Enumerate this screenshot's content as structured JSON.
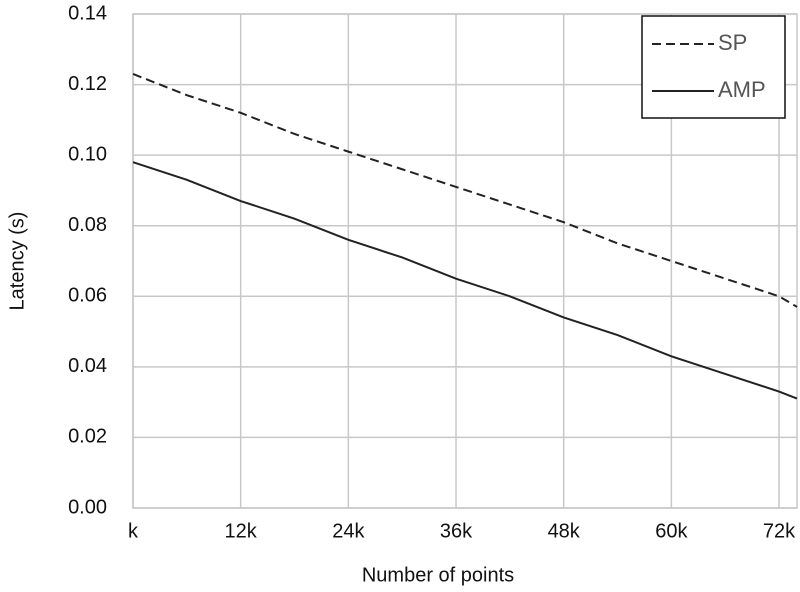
{
  "chart_data": {
    "type": "line",
    "x_label": "Number of points",
    "y_label": "Latency (s)",
    "x": [
      0,
      6000,
      12000,
      18000,
      24000,
      30000,
      36000,
      42000,
      48000,
      54000,
      60000,
      66000,
      72000,
      74000
    ],
    "series": [
      {
        "name": "SP",
        "color": "#222222",
        "dashed": true,
        "values": [
          0.123,
          0.117,
          0.112,
          0.106,
          0.101,
          0.096,
          0.091,
          0.086,
          0.081,
          0.075,
          0.07,
          0.065,
          0.06,
          0.057
        ]
      },
      {
        "name": "AMP",
        "color": "#222222",
        "dashed": false,
        "values": [
          0.098,
          0.093,
          0.087,
          0.082,
          0.076,
          0.071,
          0.065,
          0.06,
          0.054,
          0.049,
          0.043,
          0.038,
          0.033,
          0.031
        ]
      }
    ],
    "xlim": [
      0,
      74000
    ],
    "xticks": [
      {
        "value": 0,
        "label": "k"
      },
      {
        "value": 12000,
        "label": "12k"
      },
      {
        "value": 24000,
        "label": "24k"
      },
      {
        "value": 36000,
        "label": "36k"
      },
      {
        "value": 48000,
        "label": "48k"
      },
      {
        "value": 60000,
        "label": "60k"
      },
      {
        "value": 72000,
        "label": "72k"
      }
    ],
    "ylim": [
      0,
      0.14
    ],
    "yticks": [
      {
        "value": 0,
        "label": "0.00"
      },
      {
        "value": 0.02,
        "label": "0.02"
      },
      {
        "value": 0.04,
        "label": "0.04"
      },
      {
        "value": 0.06,
        "label": "0.06"
      },
      {
        "value": 0.08,
        "label": "0.08"
      },
      {
        "value": 0.1,
        "label": "0.10"
      },
      {
        "value": 0.12,
        "label": "0.12"
      },
      {
        "value": 0.14,
        "label": "0.14"
      }
    ],
    "grid": true,
    "legend": "top-right"
  }
}
